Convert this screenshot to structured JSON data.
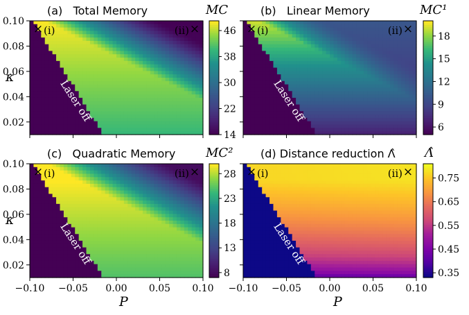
{
  "chart_data": [
    {
      "type": "heatmap",
      "panel": "(a)",
      "title": "Total Memory",
      "colorbar_label": "MC",
      "colormap": "viridis",
      "xlabel": "P",
      "ylabel": "κ",
      "xlim": [
        -0.1,
        0.1
      ],
      "ylim": [
        0.01,
        0.1
      ],
      "x_ticks": [
        "−0.10",
        "−0.05",
        "0.00",
        "0.05",
        "0.10"
      ],
      "y_ticks": [
        "0.02",
        "0.04",
        "0.06",
        "0.08",
        "0.10"
      ],
      "colorbar_ticks": [
        "14",
        "22",
        "30",
        "38",
        "46"
      ],
      "value_range": [
        14,
        49
      ],
      "markers": [
        "(i)",
        "(ii)"
      ],
      "annotation": "Laser off",
      "threshold_line": {
        "p_at_kappa_0.1": -0.097,
        "p_at_kappa_0.01": -0.015
      }
    },
    {
      "type": "heatmap",
      "panel": "(b)",
      "title": "Linear Memory",
      "colorbar_label": "MC¹",
      "colormap": "viridis",
      "xlabel": "P",
      "ylabel": "κ",
      "xlim": [
        -0.1,
        0.1
      ],
      "ylim": [
        0.01,
        0.1
      ],
      "x_ticks": [
        "−0.10",
        "−0.05",
        "0.00",
        "0.05",
        "0.10"
      ],
      "y_ticks": [
        "0.02",
        "0.04",
        "0.06",
        "0.08",
        "0.10"
      ],
      "colorbar_ticks": [
        "6",
        "9",
        "12",
        "15",
        "18"
      ],
      "value_range": [
        5,
        20
      ],
      "markers": [
        "(i)",
        "(ii)"
      ],
      "annotation": "Laser off",
      "threshold_line": {
        "p_at_kappa_0.1": -0.097,
        "p_at_kappa_0.01": -0.015
      }
    },
    {
      "type": "heatmap",
      "panel": "(c)",
      "title": "Quadratic Memory",
      "colorbar_label": "MC²",
      "colormap": "viridis",
      "xlabel": "P",
      "ylabel": "κ",
      "xlim": [
        -0.1,
        0.1
      ],
      "ylim": [
        0.01,
        0.1
      ],
      "x_ticks": [
        "−0.10",
        "−0.05",
        "0.00",
        "0.05",
        "0.10"
      ],
      "y_ticks": [
        "0.02",
        "0.04",
        "0.06",
        "0.08",
        "0.10"
      ],
      "colorbar_ticks": [
        "8",
        "13",
        "18",
        "23",
        "28"
      ],
      "value_range": [
        7,
        30
      ],
      "markers": [
        "(i)",
        "(ii)"
      ],
      "annotation": "Laser off",
      "threshold_line": {
        "p_at_kappa_0.1": -0.097,
        "p_at_kappa_0.01": -0.015
      }
    },
    {
      "type": "heatmap",
      "panel": "(d)",
      "title": "Distance reduction Λ̂",
      "colorbar_label": "Λ̂",
      "colormap": "plasma",
      "xlabel": "P",
      "ylabel": "κ",
      "xlim": [
        -0.1,
        0.1
      ],
      "ylim": [
        0.01,
        0.1
      ],
      "x_ticks": [
        "−0.10",
        "−0.05",
        "0.00",
        "0.05",
        "0.10"
      ],
      "y_ticks": [
        "0.02",
        "0.04",
        "0.06",
        "0.08",
        "0.10"
      ],
      "colorbar_ticks": [
        "0.35",
        "0.45",
        "0.55",
        "0.65",
        "0.75"
      ],
      "value_range": [
        0.33,
        0.81
      ],
      "markers": [
        "(i)",
        "(ii)"
      ],
      "annotation": "Laser off",
      "threshold_line": {
        "p_at_kappa_0.1": -0.097,
        "p_at_kappa_0.01": -0.015
      }
    }
  ]
}
